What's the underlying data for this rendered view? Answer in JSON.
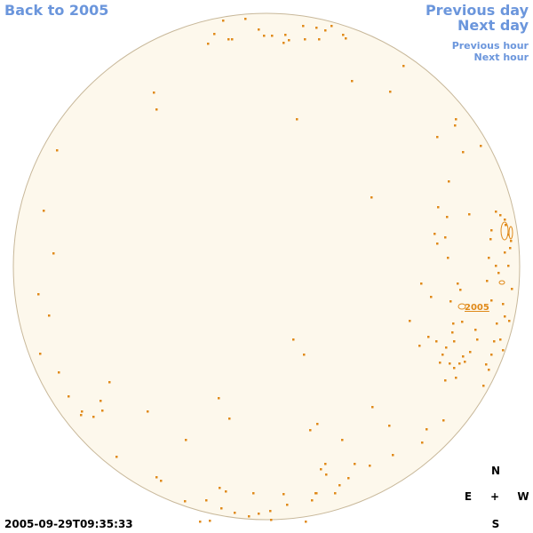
{
  "nav": {
    "back_label": "Back to 2005",
    "prev_day_label": "Previous day",
    "next_day_label": "Next day",
    "prev_hour_label": "Previous hour",
    "next_hour_label": "Next hour"
  },
  "sun": {
    "active_region_label": "2005",
    "disk_color": "#fdf8ec",
    "limb_color": "#c8b89a",
    "feature_color": "#e08a1a"
  },
  "compass": {
    "north": "N",
    "south": "S",
    "east": "E",
    "west": "W",
    "center": "+"
  },
  "timestamp": "2005-09-29T09:35:33"
}
